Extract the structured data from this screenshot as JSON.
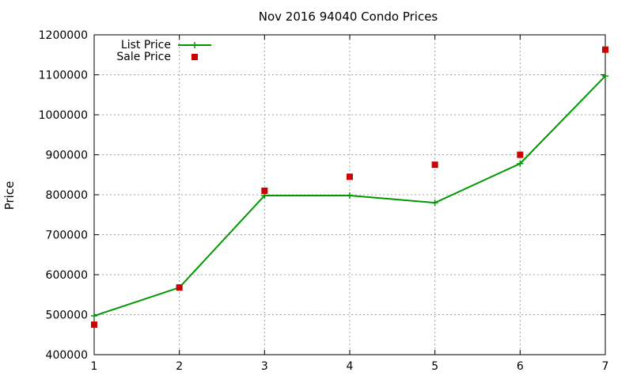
{
  "chart_data": {
    "type": "line",
    "title": "Nov 2016 94040 Condo Prices",
    "xlabel": "",
    "ylabel": "Price",
    "x": [
      1,
      2,
      3,
      4,
      5,
      6,
      7
    ],
    "xlim": [
      1,
      7
    ],
    "ylim": [
      400000,
      1200000
    ],
    "x_ticks": [
      "1",
      "2",
      "3",
      "4",
      "5",
      "6",
      "7"
    ],
    "y_ticks": [
      "400000",
      "500000",
      "600000",
      "700000",
      "800000",
      "900000",
      "1000000",
      "1100000",
      "1200000"
    ],
    "grid": true,
    "legend_position": "top-left",
    "series": [
      {
        "name": "List Price",
        "style": "line+cross",
        "color": "#009900",
        "values": [
          497000,
          568000,
          798000,
          798000,
          780000,
          878000,
          1097000
        ]
      },
      {
        "name": "Sale Price",
        "style": "square-points",
        "color": "#cc0000",
        "values": [
          475000,
          568000,
          810000,
          845000,
          875000,
          900000,
          1163000
        ]
      }
    ]
  }
}
